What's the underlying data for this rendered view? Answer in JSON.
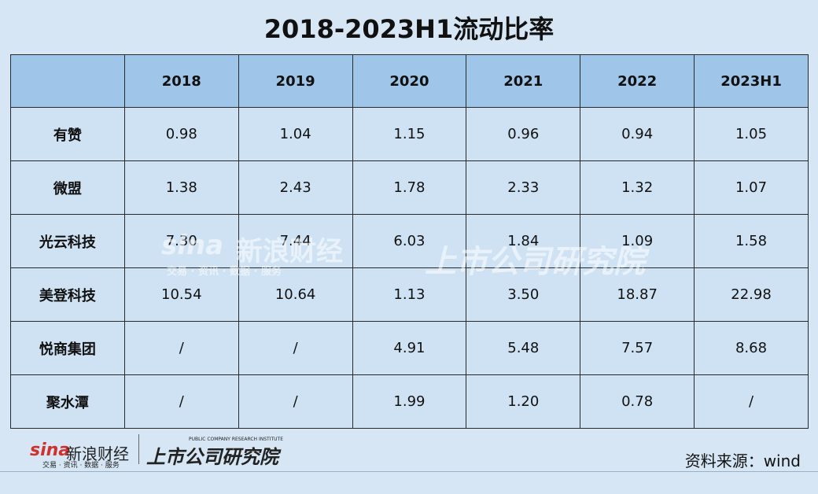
{
  "title": "2018-2023H1流动比率",
  "table": {
    "columns": [
      "2018",
      "2019",
      "2020",
      "2021",
      "2022",
      "2023H1"
    ],
    "rows": [
      {
        "name": "有赞",
        "values": [
          "0.98",
          "1.04",
          "1.15",
          "0.96",
          "0.94",
          "1.05"
        ]
      },
      {
        "name": "微盟",
        "values": [
          "1.38",
          "2.43",
          "1.78",
          "2.33",
          "1.32",
          "1.07"
        ]
      },
      {
        "name": "光云科技",
        "values": [
          "7.30",
          "7.44",
          "6.03",
          "1.84",
          "1.09",
          "1.58"
        ]
      },
      {
        "name": "美登科技",
        "values": [
          "10.54",
          "10.64",
          "1.13",
          "3.50",
          "18.87",
          "22.98"
        ]
      },
      {
        "name": "悦商集团",
        "values": [
          "/",
          "/",
          "4.91",
          "5.48",
          "7.57",
          "8.68"
        ]
      },
      {
        "name": "聚水潭",
        "values": [
          "/",
          "/",
          "1.99",
          "1.20",
          "0.78",
          "/"
        ]
      }
    ]
  },
  "footer": {
    "sina_logo": "sina",
    "sina_name": "新浪财经",
    "sina_slogan": "交易 · 资讯 · 数据 · 服务",
    "institute_english": "PUBLIC COMPANY RESEARCH INSTITUTE",
    "institute_name": "上市公司研究院",
    "source": "资料来源：wind"
  }
}
